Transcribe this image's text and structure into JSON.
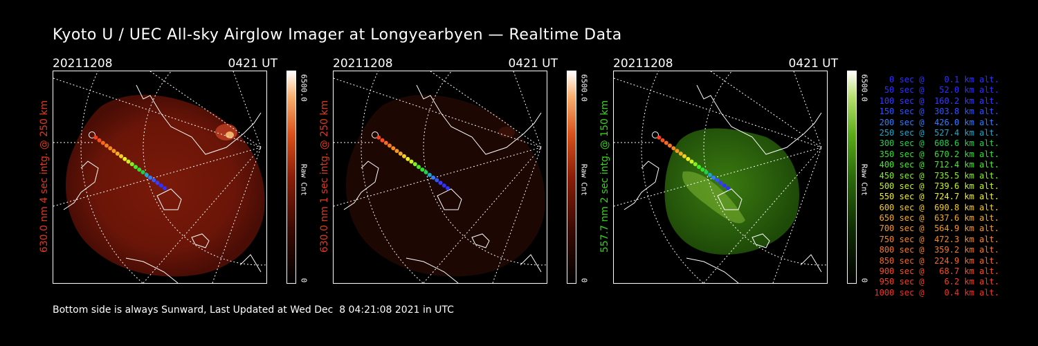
{
  "title": "Kyoto U / UEC All-sky Airglow Imager at Longyearbyen — Realtime Data",
  "footer": "Bottom side is always Sunward, Last Updated at Wed Dec  8 04:21:08 2021 in UTC",
  "panels": [
    {
      "date": "20211208",
      "time": "0421 UT",
      "side_label": "630.0 nm 4 sec intg. @ 250 km",
      "label_color": "#e03a1e",
      "cbar_max": "6500.0",
      "cbar_unit": "Raw Cnt",
      "cbar_min": "0",
      "colormap": "red"
    },
    {
      "date": "20211208",
      "time": "0421 UT",
      "side_label": "630.0 nm 1 sec intg. @ 250 km",
      "label_color": "#e03a1e",
      "cbar_max": "6500.0",
      "cbar_unit": "Raw Cnt",
      "cbar_min": "0",
      "colormap": "red"
    },
    {
      "date": "20211208",
      "time": "0421 UT",
      "side_label": "557.7 nm 2 sec intg. @ 150 km",
      "label_color": "#3ad21e",
      "cbar_max": "6500.0",
      "cbar_unit": "Raw Cnt",
      "cbar_min": "0",
      "colormap": "green"
    }
  ],
  "legend": [
    {
      "text": "0 sec @    0.1 km alt.",
      "color": "#3030ff"
    },
    {
      "text": "50 sec @   52.0 km alt.",
      "color": "#3030ff"
    },
    {
      "text": "100 sec @  160.2 km alt.",
      "color": "#3a3aff"
    },
    {
      "text": "150 sec @  303.8 km alt.",
      "color": "#2f55ff"
    },
    {
      "text": "200 sec @  426.0 km alt.",
      "color": "#2f7dff"
    },
    {
      "text": "250 sec @  527.4 km alt.",
      "color": "#1fa7c8"
    },
    {
      "text": "300 sec @  608.6 km alt.",
      "color": "#22d050"
    },
    {
      "text": "350 sec @  670.2 km alt.",
      "color": "#2fe02f"
    },
    {
      "text": "400 sec @  712.4 km alt.",
      "color": "#44ef22"
    },
    {
      "text": "450 sec @  735.5 km alt.",
      "color": "#88f022"
    },
    {
      "text": "500 sec @  739.6 km alt.",
      "color": "#c8f022"
    },
    {
      "text": "550 sec @  724.7 km alt.",
      "color": "#f0f022"
    },
    {
      "text": "600 sec @  690.8 km alt.",
      "color": "#f5d020"
    },
    {
      "text": "650 sec @  637.6 km alt.",
      "color": "#f5b020"
    },
    {
      "text": "700 sec @  564.9 km alt.",
      "color": "#f59a20"
    },
    {
      "text": "750 sec @  472.3 km alt.",
      "color": "#f58a20"
    },
    {
      "text": "800 sec @  359.2 km alt.",
      "color": "#f57a20"
    },
    {
      "text": "850 sec @  224.9 km alt.",
      "color": "#f56a20"
    },
    {
      "text": "900 sec @   68.7 km alt.",
      "color": "#f55020"
    },
    {
      "text": "950 sec @    6.2 km alt.",
      "color": "#f54020"
    },
    {
      "text": "1000 sec @    0.4 km alt.",
      "color": "#f53020"
    }
  ]
}
